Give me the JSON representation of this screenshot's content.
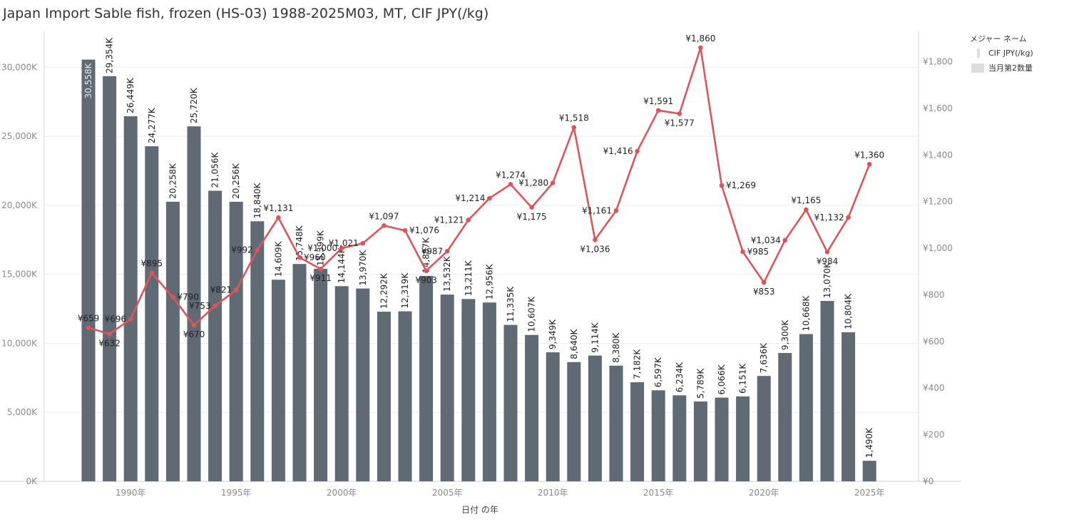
{
  "title": "Japan Import Sable fish, frozen (HS-03) 1988-2025M03, MT, CIF JPY(/kg)",
  "legend": {
    "title": "メジャー ネーム",
    "items": [
      {
        "label": "CIF JPY(/kg)",
        "kind": "line"
      },
      {
        "label": "当月第2数量",
        "kind": "bar"
      }
    ]
  },
  "chart_data": {
    "type": "bar+line",
    "x": [
      1988,
      1989,
      1990,
      1991,
      1992,
      1993,
      1994,
      1995,
      1996,
      1997,
      1998,
      1999,
      2000,
      2001,
      2002,
      2003,
      2004,
      2005,
      2006,
      2007,
      2008,
      2009,
      2010,
      2011,
      2012,
      2013,
      2014,
      2015,
      2016,
      2017,
      2018,
      2019,
      2020,
      2021,
      2022,
      2023,
      2024,
      2025
    ],
    "xlabel": "日付 の年",
    "xticks": [
      {
        "year": 1990,
        "label": "1990年"
      },
      {
        "year": 1995,
        "label": "1995年"
      },
      {
        "year": 2000,
        "label": "2000年"
      },
      {
        "year": 2005,
        "label": "2005年"
      },
      {
        "year": 2010,
        "label": "2010年"
      },
      {
        "year": 2015,
        "label": "2015年"
      },
      {
        "year": 2020,
        "label": "2020年"
      },
      {
        "year": 2025,
        "label": "2025年"
      }
    ],
    "bar_series": {
      "name": "当月第2数量",
      "color": "#5f6a74",
      "values": [
        30558,
        29354,
        26449,
        24277,
        20258,
        25720,
        21056,
        20256,
        18840,
        14609,
        15748,
        15399,
        14144,
        13970,
        12292,
        12319,
        14887,
        13532,
        13211,
        12956,
        11335,
        10607,
        9349,
        8640,
        9114,
        8380,
        7182,
        6597,
        6234,
        5789,
        6066,
        6151,
        7636,
        9300,
        10668,
        13070,
        10804,
        1490
      ],
      "labels": [
        "30,558K",
        "29,354K",
        "26,449K",
        "24,277K",
        "20,258K",
        "25,720K",
        "21,056K",
        "20,256K",
        "18,840K",
        "14,609K",
        "15,748K",
        "15,399K",
        "14,144K",
        "13,970K",
        "12,292K",
        "12,319K",
        "14,887K",
        "13,532K",
        "13,211K",
        "12,956K",
        "11,335K",
        "10,607K",
        "9,349K",
        "8,640K",
        "9,114K",
        "8,380K",
        "7,182K",
        "6,597K",
        "6,234K",
        "5,789K",
        "6,066K",
        "6,151K",
        "7,636K",
        "9,300K",
        "10,668K",
        "13,070K",
        "10,804K",
        "1,490K"
      ]
    },
    "line_series": {
      "name": "CIF JPY(/kg)",
      "color": "#dc555a",
      "values": [
        659,
        632,
        696,
        895,
        790,
        670,
        753,
        821,
        992,
        1131,
        960,
        911,
        1000,
        1021,
        1097,
        1076,
        903,
        987,
        1121,
        1214,
        1274,
        1175,
        1280,
        1518,
        1036,
        1161,
        1416,
        1591,
        1577,
        1860,
        1269,
        985,
        853,
        1034,
        1165,
        984,
        1132,
        1360
      ],
      "labels": [
        "¥659",
        "¥632",
        "¥696",
        "¥895",
        "¥790",
        "¥670",
        "¥753",
        "¥821",
        "¥992",
        "¥1,131",
        "¥960",
        "¥911",
        "¥1,000",
        "¥1,021",
        "¥1,097",
        "¥1,076",
        "¥903",
        "¥987",
        "¥1,121",
        "¥1,214",
        "¥1,274",
        "¥1,175",
        "¥1,280",
        "¥1,518",
        "¥1,036",
        "¥1,161",
        "¥1,416",
        "¥1,591",
        "¥1,577",
        "¥1,860",
        "¥1,269",
        "¥985",
        "¥853",
        "¥1,034",
        "¥1,165",
        "¥984",
        "¥1,132",
        "¥1,360"
      ]
    },
    "y_left": {
      "lim": [
        0,
        32600
      ],
      "ticks": [
        0,
        5000,
        10000,
        15000,
        20000,
        25000,
        30000
      ],
      "tick_labels": [
        "0K",
        "5,000K",
        "10,000K",
        "15,000K",
        "20,000K",
        "25,000K",
        "30,000K"
      ]
    },
    "y_right": {
      "lim": [
        0,
        1930
      ],
      "ticks": [
        0,
        200,
        400,
        600,
        800,
        1000,
        1200,
        1400,
        1600,
        1800
      ],
      "tick_labels": [
        "¥0",
        "¥200",
        "¥400",
        "¥600",
        "¥800",
        "¥1,000",
        "¥1,200",
        "¥1,400",
        "¥1,600",
        "¥1,800"
      ]
    },
    "grid": true
  }
}
